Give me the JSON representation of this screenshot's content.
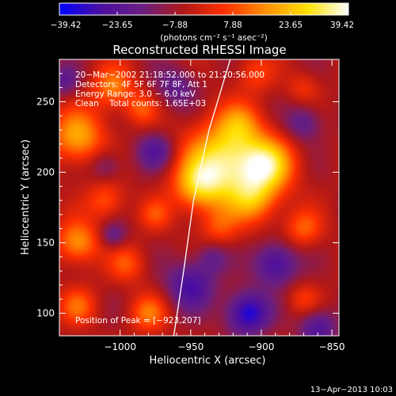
{
  "chart_data": {
    "type": "heatmap",
    "title": "Reconstructed RHESSI Image",
    "xlabel": "Heliocentric X (arcsec)",
    "ylabel": "Heliocentric Y (arcsec)",
    "xlim": [
      -1043,
      -845
    ],
    "ylim": [
      84,
      280
    ],
    "x_ticks": [
      -1000,
      -950,
      -900,
      -850
    ],
    "x_tick_labels": [
      "−1000",
      "−950",
      "−900",
      "−850"
    ],
    "y_ticks": [
      100,
      150,
      200,
      250
    ],
    "y_tick_labels": [
      "100",
      "150",
      "200",
      "250"
    ],
    "colorbar": {
      "range": [
        -39.42,
        39.42
      ],
      "tick_labels": [
        "−39.42",
        "−23.65",
        "−7.88",
        "7.88",
        "23.65",
        "39.42"
      ],
      "unit_label": "(photons cm⁻² s⁻¹ asec⁻²)",
      "colormap": [
        "#0000ff",
        "#4b0fa0",
        "#6a1f80",
        "#b01818",
        "#ff3000",
        "#ff9000",
        "#ffe000",
        "#ffffff"
      ]
    },
    "info_lines": [
      "20−Mar−2002 21:18:52.000 to 21:20:56.000",
      "Detectors: 4F 5F 6F 7F 8F, Att 1",
      "Energy Range: 3.0 − 6.0 keV",
      "Clean    Total counts: 1.65E+03"
    ],
    "peak_label": "Position of Peak = [−923,207]",
    "peak": [
      -923,
      207
    ],
    "limb_curve": [
      [
        -962,
        84
      ],
      [
        -955,
        130
      ],
      [
        -948,
        180
      ],
      [
        -937,
        230
      ],
      [
        -922,
        280
      ]
    ],
    "blobs": [
      {
        "x": -925,
        "y": 207,
        "r": 30,
        "v": 39
      },
      {
        "x": -895,
        "y": 205,
        "r": 20,
        "v": 28
      },
      {
        "x": -945,
        "y": 190,
        "r": 18,
        "v": 22
      },
      {
        "x": -905,
        "y": 180,
        "r": 18,
        "v": 20
      },
      {
        "x": -870,
        "y": 160,
        "r": 14,
        "v": 16
      },
      {
        "x": -930,
        "y": 160,
        "r": 14,
        "v": 12
      },
      {
        "x": -1030,
        "y": 225,
        "r": 20,
        "v": 26
      },
      {
        "x": -1005,
        "y": 260,
        "r": 16,
        "v": 20
      },
      {
        "x": -985,
        "y": 245,
        "r": 12,
        "v": 14
      },
      {
        "x": -1030,
        "y": 150,
        "r": 16,
        "v": 24
      },
      {
        "x": -1010,
        "y": 180,
        "r": 14,
        "v": 16
      },
      {
        "x": -975,
        "y": 170,
        "r": 12,
        "v": 12
      },
      {
        "x": -995,
        "y": 135,
        "r": 14,
        "v": 14
      },
      {
        "x": -1030,
        "y": 105,
        "r": 14,
        "v": 16
      },
      {
        "x": -980,
        "y": 100,
        "r": 14,
        "v": 18
      },
      {
        "x": -905,
        "y": 270,
        "r": 14,
        "v": 12
      },
      {
        "x": -870,
        "y": 260,
        "r": 12,
        "v": 10
      },
      {
        "x": -870,
        "y": 110,
        "r": 12,
        "v": 10
      },
      {
        "x": -915,
        "y": 235,
        "r": 16,
        "v": 14
      },
      {
        "x": -975,
        "y": 215,
        "r": 14,
        "v": -18
      },
      {
        "x": -960,
        "y": 260,
        "r": 16,
        "v": -14
      },
      {
        "x": -1040,
        "y": 265,
        "r": 12,
        "v": -14
      },
      {
        "x": -1010,
        "y": 205,
        "r": 12,
        "v": -12
      },
      {
        "x": -950,
        "y": 120,
        "r": 18,
        "v": -22
      },
      {
        "x": -910,
        "y": 100,
        "r": 16,
        "v": -30
      },
      {
        "x": -890,
        "y": 135,
        "r": 16,
        "v": -24
      },
      {
        "x": -860,
        "y": 90,
        "r": 14,
        "v": -20
      },
      {
        "x": -1005,
        "y": 155,
        "r": 10,
        "v": -14
      },
      {
        "x": -870,
        "y": 235,
        "r": 14,
        "v": -16
      },
      {
        "x": -935,
        "y": 140,
        "r": 12,
        "v": -12
      }
    ]
  },
  "footer_timestamp": "13−Apr−2013 10:03"
}
